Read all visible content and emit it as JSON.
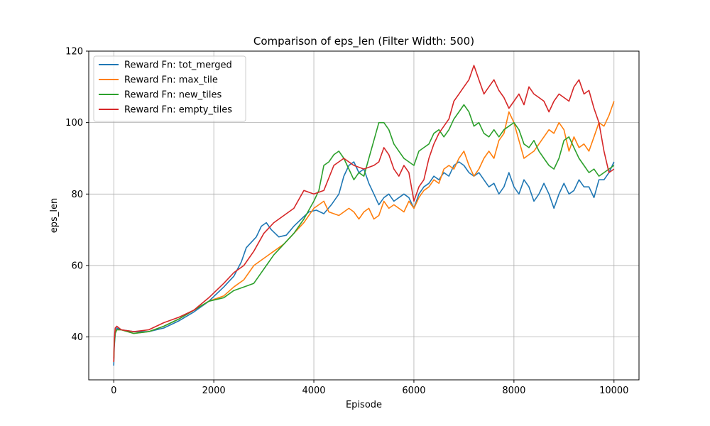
{
  "chart_data": {
    "type": "line",
    "title": "Comparison of eps_len (Filter Width: 500)",
    "xlabel": "Episode",
    "ylabel": "eps_len",
    "xlim": [
      -500,
      10500
    ],
    "ylim": [
      28,
      120
    ],
    "xticks": [
      0,
      2000,
      4000,
      6000,
      8000,
      10000
    ],
    "yticks": [
      40,
      60,
      80,
      100,
      120
    ],
    "grid": true,
    "legend_position": "top-left",
    "series": [
      {
        "name": "Reward Fn: tot_merged",
        "color": "#1f77b4",
        "points": [
          [
            0,
            32
          ],
          [
            10,
            37
          ],
          [
            30,
            41
          ],
          [
            60,
            42.5
          ],
          [
            150,
            42
          ],
          [
            400,
            41.5
          ],
          [
            700,
            41.5
          ],
          [
            1000,
            42.5
          ],
          [
            1300,
            44.5
          ],
          [
            1600,
            47
          ],
          [
            1900,
            50
          ],
          [
            2200,
            54
          ],
          [
            2400,
            57
          ],
          [
            2550,
            61
          ],
          [
            2650,
            65
          ],
          [
            2750,
            66.5
          ],
          [
            2850,
            68
          ],
          [
            2950,
            71
          ],
          [
            3050,
            72
          ],
          [
            3150,
            70
          ],
          [
            3300,
            68
          ],
          [
            3450,
            68.5
          ],
          [
            3600,
            71
          ],
          [
            3750,
            73
          ],
          [
            3900,
            75
          ],
          [
            4050,
            75.5
          ],
          [
            4200,
            74.5
          ],
          [
            4350,
            77
          ],
          [
            4500,
            80
          ],
          [
            4600,
            85
          ],
          [
            4700,
            88
          ],
          [
            4800,
            89
          ],
          [
            4900,
            86
          ],
          [
            5000,
            87
          ],
          [
            5100,
            83
          ],
          [
            5200,
            80
          ],
          [
            5300,
            77
          ],
          [
            5400,
            79
          ],
          [
            5500,
            80
          ],
          [
            5600,
            78
          ],
          [
            5700,
            79
          ],
          [
            5800,
            80
          ],
          [
            5900,
            79
          ],
          [
            6000,
            76
          ],
          [
            6100,
            80
          ],
          [
            6200,
            82
          ],
          [
            6300,
            83
          ],
          [
            6400,
            85
          ],
          [
            6500,
            84
          ],
          [
            6600,
            86
          ],
          [
            6700,
            85
          ],
          [
            6800,
            88
          ],
          [
            6900,
            89
          ],
          [
            7000,
            88
          ],
          [
            7100,
            86
          ],
          [
            7200,
            85
          ],
          [
            7300,
            86
          ],
          [
            7400,
            84
          ],
          [
            7500,
            82
          ],
          [
            7600,
            83
          ],
          [
            7700,
            80
          ],
          [
            7800,
            82
          ],
          [
            7900,
            86
          ],
          [
            8000,
            82
          ],
          [
            8100,
            80
          ],
          [
            8200,
            84
          ],
          [
            8300,
            82
          ],
          [
            8400,
            78
          ],
          [
            8500,
            80
          ],
          [
            8600,
            83
          ],
          [
            8700,
            80
          ],
          [
            8800,
            76
          ],
          [
            8900,
            80
          ],
          [
            9000,
            83
          ],
          [
            9100,
            80
          ],
          [
            9200,
            81
          ],
          [
            9300,
            84
          ],
          [
            9400,
            82
          ],
          [
            9500,
            82
          ],
          [
            9600,
            79
          ],
          [
            9700,
            84
          ],
          [
            9800,
            84
          ],
          [
            9900,
            86
          ],
          [
            10000,
            89
          ]
        ]
      },
      {
        "name": "Reward Fn: max_tile",
        "color": "#ff7f0e",
        "points": [
          [
            0,
            33
          ],
          [
            10,
            38
          ],
          [
            30,
            41.5
          ],
          [
            60,
            42
          ],
          [
            150,
            42
          ],
          [
            400,
            41
          ],
          [
            700,
            41.5
          ],
          [
            1000,
            43
          ],
          [
            1300,
            45
          ],
          [
            1600,
            47.5
          ],
          [
            1900,
            50
          ],
          [
            2200,
            51.5
          ],
          [
            2400,
            54
          ],
          [
            2600,
            56
          ],
          [
            2800,
            60
          ],
          [
            3000,
            62
          ],
          [
            3200,
            64
          ],
          [
            3400,
            66
          ],
          [
            3600,
            69
          ],
          [
            3800,
            72
          ],
          [
            4000,
            76
          ],
          [
            4200,
            78
          ],
          [
            4300,
            75
          ],
          [
            4500,
            74
          ],
          [
            4700,
            76
          ],
          [
            4800,
            75
          ],
          [
            4900,
            73
          ],
          [
            5000,
            75
          ],
          [
            5100,
            76
          ],
          [
            5200,
            73
          ],
          [
            5300,
            74
          ],
          [
            5400,
            78
          ],
          [
            5500,
            76
          ],
          [
            5600,
            77
          ],
          [
            5700,
            76
          ],
          [
            5800,
            75
          ],
          [
            5900,
            78
          ],
          [
            6000,
            76
          ],
          [
            6100,
            79
          ],
          [
            6200,
            81
          ],
          [
            6300,
            82
          ],
          [
            6400,
            84
          ],
          [
            6500,
            83
          ],
          [
            6600,
            87
          ],
          [
            6700,
            88
          ],
          [
            6800,
            87
          ],
          [
            6900,
            90
          ],
          [
            7000,
            92
          ],
          [
            7100,
            88
          ],
          [
            7200,
            85
          ],
          [
            7300,
            87
          ],
          [
            7400,
            90
          ],
          [
            7500,
            92
          ],
          [
            7600,
            90
          ],
          [
            7700,
            95
          ],
          [
            7800,
            97
          ],
          [
            7900,
            103
          ],
          [
            8000,
            100
          ],
          [
            8100,
            95
          ],
          [
            8200,
            90
          ],
          [
            8300,
            91
          ],
          [
            8400,
            92
          ],
          [
            8500,
            94
          ],
          [
            8600,
            96
          ],
          [
            8700,
            98
          ],
          [
            8800,
            97
          ],
          [
            8900,
            100
          ],
          [
            9000,
            98
          ],
          [
            9100,
            92
          ],
          [
            9200,
            96
          ],
          [
            9300,
            93
          ],
          [
            9400,
            94
          ],
          [
            9500,
            92
          ],
          [
            9600,
            96
          ],
          [
            9700,
            100
          ],
          [
            9800,
            99
          ],
          [
            9900,
            102
          ],
          [
            10000,
            106
          ]
        ]
      },
      {
        "name": "Reward Fn: new_tiles",
        "color": "#2ca02c",
        "points": [
          [
            0,
            34
          ],
          [
            10,
            38
          ],
          [
            30,
            41
          ],
          [
            60,
            42
          ],
          [
            150,
            42
          ],
          [
            400,
            41
          ],
          [
            700,
            41.5
          ],
          [
            1000,
            43
          ],
          [
            1300,
            45
          ],
          [
            1600,
            47.5
          ],
          [
            1900,
            50
          ],
          [
            2200,
            51
          ],
          [
            2400,
            53
          ],
          [
            2600,
            54
          ],
          [
            2800,
            55
          ],
          [
            3000,
            59
          ],
          [
            3200,
            63
          ],
          [
            3400,
            66
          ],
          [
            3600,
            69
          ],
          [
            3800,
            73
          ],
          [
            4000,
            78
          ],
          [
            4100,
            81
          ],
          [
            4200,
            88
          ],
          [
            4300,
            89
          ],
          [
            4400,
            91
          ],
          [
            4500,
            92
          ],
          [
            4600,
            90
          ],
          [
            4700,
            87
          ],
          [
            4800,
            84
          ],
          [
            4900,
            86
          ],
          [
            5000,
            85
          ],
          [
            5100,
            90
          ],
          [
            5200,
            95
          ],
          [
            5300,
            100
          ],
          [
            5400,
            100
          ],
          [
            5500,
            98
          ],
          [
            5600,
            94
          ],
          [
            5700,
            92
          ],
          [
            5800,
            90
          ],
          [
            5900,
            89
          ],
          [
            6000,
            88
          ],
          [
            6100,
            92
          ],
          [
            6200,
            93
          ],
          [
            6300,
            94
          ],
          [
            6400,
            97
          ],
          [
            6500,
            98
          ],
          [
            6600,
            96
          ],
          [
            6700,
            98
          ],
          [
            6800,
            101
          ],
          [
            6900,
            103
          ],
          [
            7000,
            105
          ],
          [
            7100,
            103
          ],
          [
            7200,
            99
          ],
          [
            7300,
            100
          ],
          [
            7400,
            97
          ],
          [
            7500,
            96
          ],
          [
            7600,
            98
          ],
          [
            7700,
            96
          ],
          [
            7800,
            98
          ],
          [
            7900,
            99
          ],
          [
            8000,
            100
          ],
          [
            8100,
            98
          ],
          [
            8200,
            94
          ],
          [
            8300,
            93
          ],
          [
            8400,
            95
          ],
          [
            8500,
            92
          ],
          [
            8600,
            90
          ],
          [
            8700,
            88
          ],
          [
            8800,
            87
          ],
          [
            8900,
            90
          ],
          [
            9000,
            95
          ],
          [
            9100,
            96
          ],
          [
            9200,
            93
          ],
          [
            9300,
            90
          ],
          [
            9400,
            88
          ],
          [
            9500,
            86
          ],
          [
            9600,
            87
          ],
          [
            9700,
            85
          ],
          [
            9800,
            86
          ],
          [
            9900,
            87
          ],
          [
            10000,
            88
          ]
        ]
      },
      {
        "name": "Reward Fn: empty_tiles",
        "color": "#d62728",
        "points": [
          [
            0,
            33
          ],
          [
            10,
            39
          ],
          [
            30,
            42.5
          ],
          [
            60,
            43
          ],
          [
            150,
            42
          ],
          [
            400,
            41.5
          ],
          [
            700,
            42
          ],
          [
            1000,
            44
          ],
          [
            1300,
            45.5
          ],
          [
            1600,
            47.5
          ],
          [
            1900,
            51
          ],
          [
            2200,
            55
          ],
          [
            2400,
            58
          ],
          [
            2600,
            60
          ],
          [
            2800,
            64
          ],
          [
            3000,
            69
          ],
          [
            3200,
            72
          ],
          [
            3400,
            74
          ],
          [
            3600,
            76
          ],
          [
            3800,
            81
          ],
          [
            4000,
            80
          ],
          [
            4200,
            81
          ],
          [
            4400,
            88
          ],
          [
            4600,
            90
          ],
          [
            4800,
            88
          ],
          [
            5000,
            87
          ],
          [
            5200,
            88
          ],
          [
            5300,
            89
          ],
          [
            5400,
            93
          ],
          [
            5500,
            91
          ],
          [
            5600,
            87
          ],
          [
            5700,
            85
          ],
          [
            5800,
            88
          ],
          [
            5900,
            86
          ],
          [
            6000,
            78
          ],
          [
            6100,
            82
          ],
          [
            6200,
            84
          ],
          [
            6300,
            90
          ],
          [
            6400,
            94
          ],
          [
            6500,
            97
          ],
          [
            6600,
            99
          ],
          [
            6700,
            101
          ],
          [
            6800,
            106
          ],
          [
            6900,
            108
          ],
          [
            7000,
            110
          ],
          [
            7100,
            112
          ],
          [
            7200,
            116
          ],
          [
            7300,
            112
          ],
          [
            7400,
            108
          ],
          [
            7500,
            110
          ],
          [
            7600,
            112
          ],
          [
            7700,
            109
          ],
          [
            7800,
            107
          ],
          [
            7900,
            104
          ],
          [
            8000,
            106
          ],
          [
            8100,
            108
          ],
          [
            8200,
            105
          ],
          [
            8300,
            110
          ],
          [
            8400,
            108
          ],
          [
            8500,
            107
          ],
          [
            8600,
            106
          ],
          [
            8700,
            103
          ],
          [
            8800,
            106
          ],
          [
            8900,
            108
          ],
          [
            9000,
            107
          ],
          [
            9100,
            106
          ],
          [
            9200,
            110
          ],
          [
            9300,
            112
          ],
          [
            9400,
            108
          ],
          [
            9500,
            109
          ],
          [
            9600,
            104
          ],
          [
            9700,
            100
          ],
          [
            9800,
            92
          ],
          [
            9900,
            86
          ],
          [
            10000,
            87
          ]
        ]
      }
    ]
  }
}
